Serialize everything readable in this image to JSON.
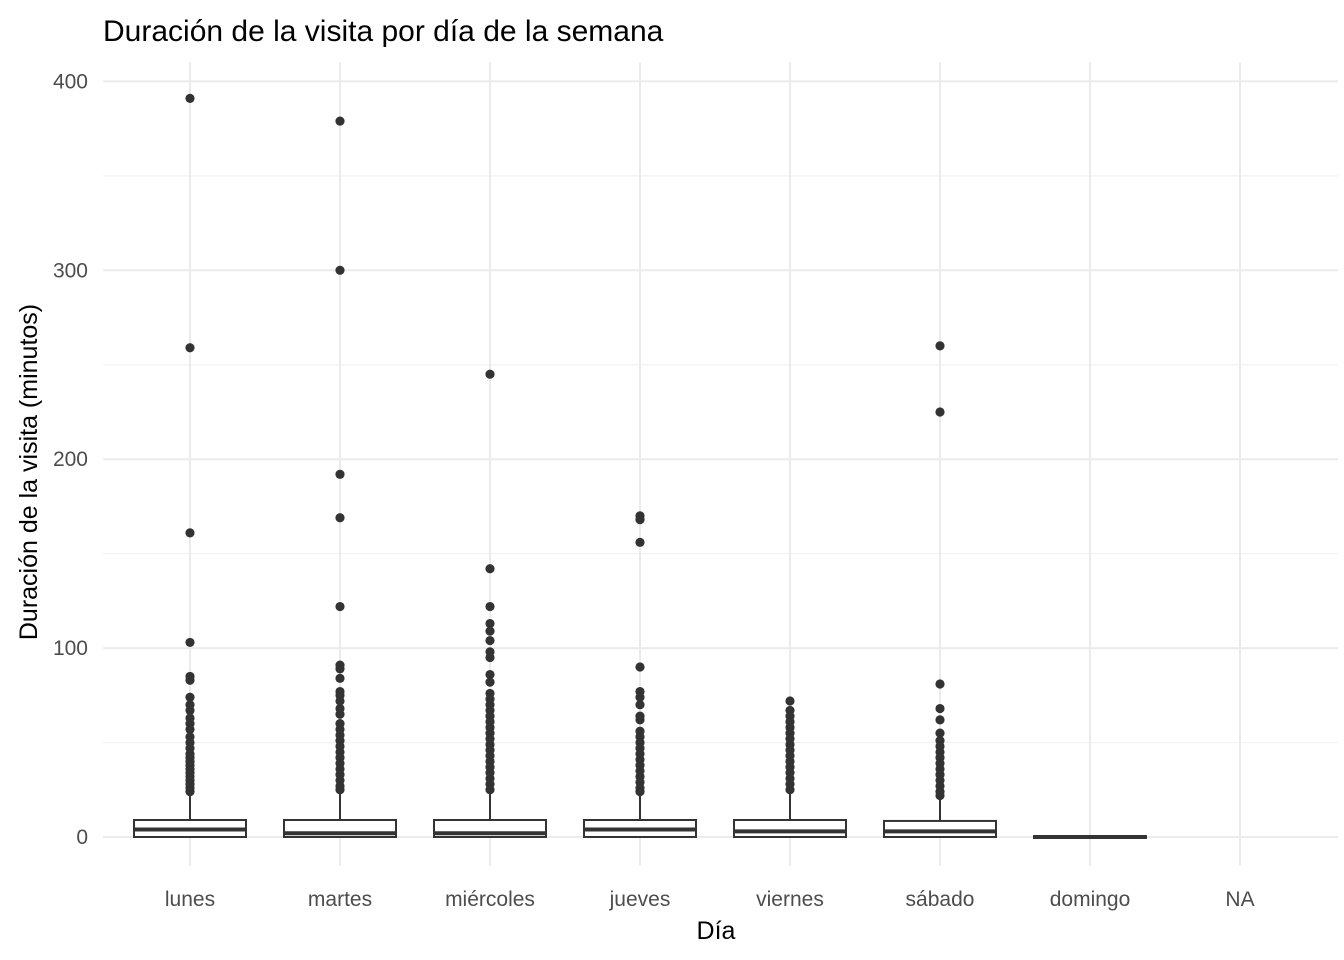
{
  "chart_data": {
    "type": "box",
    "title": "Duración de la visita por día de la semana",
    "xlabel": "Día",
    "ylabel": "Duración de la visita (minutos)",
    "categories": [
      "lunes",
      "martes",
      "miércoles",
      "jueves",
      "viernes",
      "sábado",
      "domingo",
      "NA"
    ],
    "ylim": [
      -15,
      410
    ],
    "y_ticks": [
      0,
      100,
      200,
      300,
      400
    ],
    "y_tick_labels": [
      "0",
      "100",
      "200",
      "300",
      "400"
    ],
    "grid": true,
    "legend": "none",
    "boxes": [
      {
        "category": "lunes",
        "q1": 0,
        "median": 4,
        "q3": 9,
        "whisker_low": 0,
        "whisker_high": 23,
        "outliers": [
          391,
          259,
          161,
          103,
          85,
          83,
          74,
          70,
          67,
          63,
          60,
          57,
          53,
          50,
          47,
          44,
          42,
          40,
          38,
          36,
          34,
          32,
          30,
          28,
          26,
          24
        ]
      },
      {
        "category": "martes",
        "q1": 0,
        "median": 2,
        "q3": 9,
        "whisker_low": 0,
        "whisker_high": 23,
        "outliers": [
          379,
          300,
          192,
          169,
          122,
          91,
          89,
          84,
          77,
          75,
          72,
          68,
          65,
          60,
          57,
          54,
          51,
          48,
          45,
          42,
          39,
          36,
          33,
          30,
          27,
          25
        ]
      },
      {
        "category": "miércoles",
        "q1": 0,
        "median": 2,
        "q3": 9,
        "whisker_low": 0,
        "whisker_high": 23,
        "outliers": [
          245,
          142,
          122,
          113,
          109,
          104,
          98,
          95,
          86,
          82,
          76,
          73,
          70,
          67,
          64,
          61,
          58,
          55,
          52,
          49,
          46,
          43,
          40,
          37,
          34,
          31,
          28,
          25
        ]
      },
      {
        "category": "jueves",
        "q1": 0,
        "median": 4,
        "q3": 9,
        "whisker_low": 0,
        "whisker_high": 23,
        "outliers": [
          170,
          168,
          156,
          90,
          77,
          74,
          70,
          64,
          62,
          56,
          53,
          50,
          47,
          44,
          41,
          38,
          35,
          32,
          29,
          26,
          24
        ]
      },
      {
        "category": "viernes",
        "q1": 0,
        "median": 3,
        "q3": 9,
        "whisker_low": 0,
        "whisker_high": 23,
        "outliers": [
          72,
          67,
          64,
          61,
          58,
          55,
          52,
          49,
          46,
          43,
          40,
          37,
          34,
          31,
          28,
          25
        ]
      },
      {
        "category": "sábado",
        "q1": 0,
        "median": 3,
        "q3": 8.5,
        "whisker_low": 0,
        "whisker_high": 21,
        "outliers": [
          260,
          225,
          81,
          68,
          62,
          55,
          51,
          48,
          45,
          42,
          39,
          36,
          33,
          30,
          27,
          24,
          22
        ]
      },
      {
        "category": "domingo",
        "q1": -0.5,
        "median": 0,
        "q3": 0.5,
        "whisker_low": -0.5,
        "whisker_high": 0.5,
        "outliers": []
      }
    ]
  }
}
